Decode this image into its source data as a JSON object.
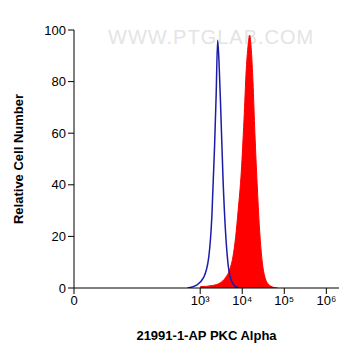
{
  "chart_data": {
    "type": "histogram",
    "xlabel": "21991-1-AP PKC Alpha",
    "ylabel": "Relative Cell Number",
    "annotations": [
      "WWW.PTGLAB.COM"
    ],
    "log": "x",
    "xlim": [
      0,
      2000000
    ],
    "ylim": [
      0,
      100
    ],
    "xticks": [
      0,
      {
        "value": 1000,
        "label": "10³"
      },
      {
        "value": 10000,
        "label": "10⁴"
      },
      {
        "value": 100000,
        "label": "10⁵"
      },
      {
        "value": 1000000,
        "label": "10⁶"
      }
    ],
    "yticks": [
      0,
      20,
      40,
      60,
      80,
      100
    ],
    "series": [
      {
        "type": "line",
        "color": "#1c1ca8",
        "x": [
          500,
          800,
          1200,
          1600,
          1900,
          2200,
          2400,
          2600,
          2800,
          3100,
          3500,
          4000,
          4700,
          5500,
          7000,
          9000
        ],
        "values": [
          0,
          1,
          4,
          12,
          28,
          55,
          75,
          96,
          88,
          68,
          42,
          22,
          8,
          3,
          0.5,
          0
        ]
      },
      {
        "type": "area",
        "color": "#ff0000",
        "x": [
          1000,
          2000,
          3000,
          4000,
          5000,
          6000,
          7000,
          8000,
          9500,
          11000,
          12500,
          14000,
          15000,
          16500,
          18000,
          20000,
          23000,
          26000,
          30000,
          35000,
          42000,
          55000,
          70000
        ],
        "values": [
          0.5,
          1,
          2,
          4,
          7,
          12,
          20,
          30,
          45,
          65,
          85,
          95,
          98,
          92,
          80,
          60,
          38,
          22,
          10,
          4,
          1.5,
          0.3,
          0
        ]
      }
    ]
  }
}
